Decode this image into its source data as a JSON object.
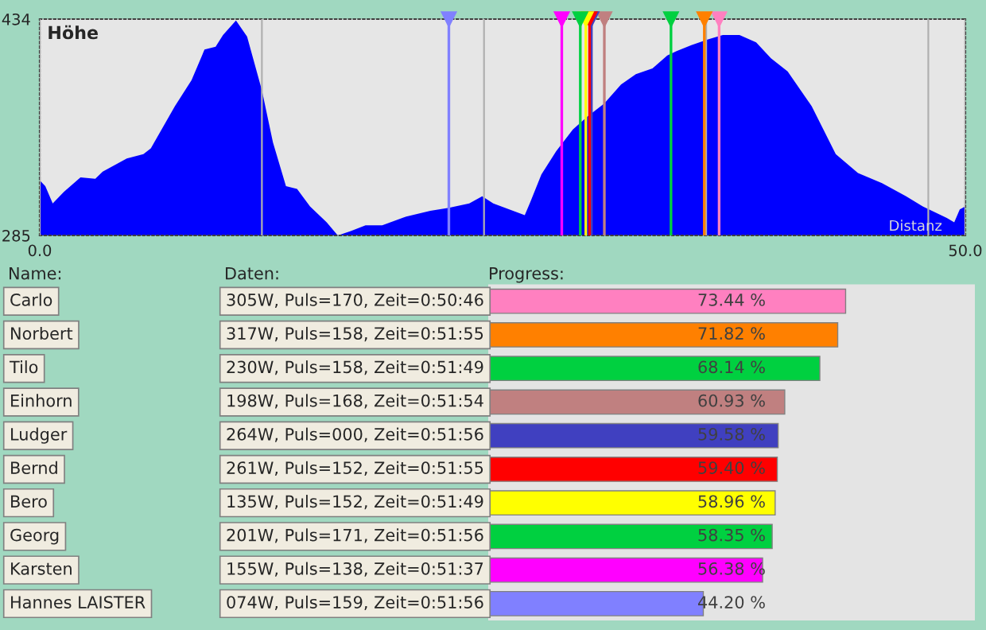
{
  "chart_data": [
    {
      "type": "area",
      "title": "Höhe",
      "xlabel": "Distanz",
      "x": [
        0,
        0.3,
        0.7,
        1.3,
        2.2,
        3.0,
        3.4,
        4.7,
        5.6,
        6.0,
        7.3,
        8.2,
        8.9,
        9.5,
        9.9,
        10.6,
        11.2,
        12.0,
        12.6,
        13.3,
        13.9,
        14.6,
        15.5,
        16.1,
        16.8,
        17.6,
        18.5,
        19.8,
        21.1,
        22.1,
        23.2,
        23.9,
        24.5,
        26.2,
        26.5,
        27.1,
        27.9,
        28.8,
        29.6,
        30.5,
        31.4,
        32.2,
        33.1,
        33.9,
        34.4,
        35.2,
        36.1,
        36.9,
        37.8,
        38.7,
        39.5,
        40.4,
        41.7,
        43.0,
        44.2,
        45.5,
        46.8,
        47.7,
        49.0,
        49.4,
        49.7,
        50
      ],
      "series": [
        {
          "color": "#0000ff",
          "values": [
            323,
            319,
            307,
            315,
            325,
            324,
            329,
            338,
            341,
            345,
            374,
            392,
            413,
            415,
            423,
            433,
            422,
            385,
            349,
            319,
            317,
            305,
            294,
            285,
            288,
            292,
            292,
            298,
            302,
            304,
            307,
            312,
            307,
            299,
            308,
            327,
            343,
            358,
            367,
            376,
            389,
            396,
            400,
            409,
            412,
            416,
            420,
            423,
            423,
            418,
            407,
            398,
            374,
            341,
            328,
            321,
            312,
            305,
            297,
            294,
            303,
            305
          ]
        }
      ],
      "xlim": [
        0,
        50
      ],
      "ylim": [
        285,
        434
      ],
      "xticks": [
        {
          "value": 0,
          "label": "0.0"
        },
        {
          "value": 12,
          "label": null
        },
        {
          "value": 24,
          "label": null
        },
        {
          "value": 36,
          "label": null
        },
        {
          "value": 48,
          "label": null
        },
        {
          "value": 50,
          "label": "50.0"
        }
      ],
      "yticks": [
        285,
        434
      ],
      "grid": "x",
      "ref_lines": [
        {
          "axis": "x",
          "value": 36.7,
          "color": "#ff80c0"
        },
        {
          "axis": "x",
          "value": 35.9,
          "color": "#ff8000"
        },
        {
          "axis": "x",
          "value": 34.1,
          "color": "#00d040"
        },
        {
          "axis": "x",
          "value": 30.5,
          "color": "#c08080"
        },
        {
          "axis": "x",
          "value": 29.8,
          "color": "#4040c0"
        },
        {
          "axis": "x",
          "value": 29.7,
          "color": "#ff0000"
        },
        {
          "axis": "x",
          "value": 29.5,
          "color": "#ffff00"
        },
        {
          "axis": "x",
          "value": 29.2,
          "color": "#00d040"
        },
        {
          "axis": "x",
          "value": 28.2,
          "color": "#ff00ff"
        },
        {
          "axis": "x",
          "value": 22.1,
          "color": "#8080ff"
        }
      ]
    },
    {
      "type": "bar",
      "orientation": "horizontal",
      "ylabel": "Name:",
      "y2label": "Daten:",
      "xlabel": "Progress:",
      "categories": [
        "Carlo",
        "Norbert",
        "Tilo",
        "Einhorn",
        "Ludger",
        "Bernd",
        "Bero",
        "Georg",
        "Karsten",
        "Hannes LAISTER"
      ],
      "values": [
        73.44,
        71.82,
        68.14,
        60.93,
        59.58,
        59.4,
        58.96,
        58.35,
        56.38,
        44.2
      ],
      "value_labels": [
        "73.44 %",
        "71.82 %",
        "68.14 %",
        "60.93 %",
        "59.58 %",
        "59.40 %",
        "58.96 %",
        "58.35 %",
        "56.38 %",
        "44.20 %"
      ],
      "colors": [
        "#ff80c0",
        "#ff8000",
        "#00d040",
        "#c08080",
        "#4040c0",
        "#ff0000",
        "#ffff00",
        "#00d040",
        "#ff00ff",
        "#8080ff"
      ],
      "annotations": [
        "305W, Puls=170, Zeit=0:50:46",
        "317W, Puls=158, Zeit=0:51:55",
        "230W, Puls=158, Zeit=0:51:49",
        "198W, Puls=168, Zeit=0:51:54",
        "264W, Puls=000, Zeit=0:51:56",
        "261W, Puls=152, Zeit=0:51:55",
        "135W, Puls=152, Zeit=0:51:49",
        "201W, Puls=171, Zeit=0:51:56",
        "155W, Puls=138, Zeit=0:51:37",
        "074W, Puls=159, Zeit=0:51:56"
      ],
      "xlim": [
        0,
        100
      ]
    }
  ]
}
